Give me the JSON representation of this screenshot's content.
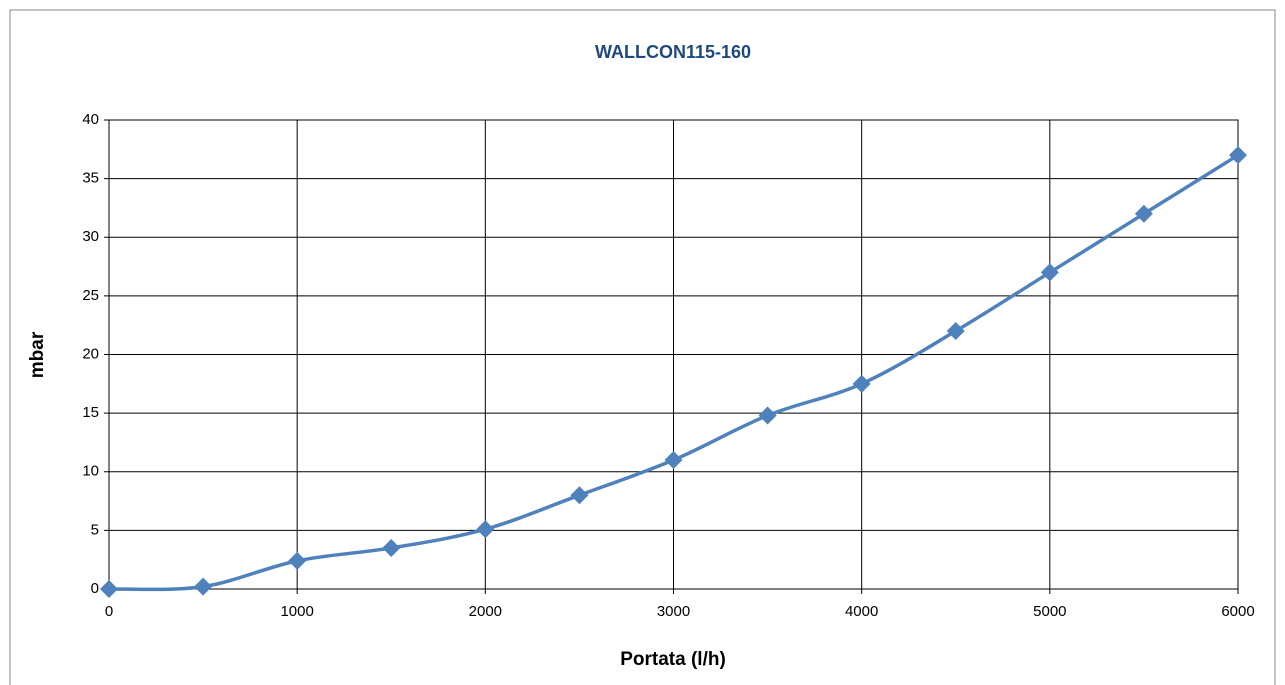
{
  "chart_data": {
    "type": "line",
    "title": "WALLCON115-160",
    "x_label": "Portata (l/h)",
    "y_label": "mbar",
    "x": [
      0,
      500,
      1000,
      1500,
      2000,
      2500,
      3000,
      3500,
      4000,
      4500,
      5000,
      5500,
      6000
    ],
    "series": [
      {
        "name": "WALLCON115-160",
        "color": "#4f81bd",
        "values": [
          0,
          0.2,
          2.4,
          3.5,
          5.1,
          8,
          11,
          14.8,
          17.5,
          22,
          27,
          32,
          37
        ]
      }
    ],
    "xlim": [
      0,
      6000
    ],
    "xticks": [
      0,
      1000,
      2000,
      3000,
      4000,
      5000,
      6000
    ],
    "ylim": [
      0,
      40
    ],
    "yticks": [
      0,
      5,
      10,
      15,
      20,
      25,
      30,
      35,
      40
    ],
    "grid": true
  }
}
